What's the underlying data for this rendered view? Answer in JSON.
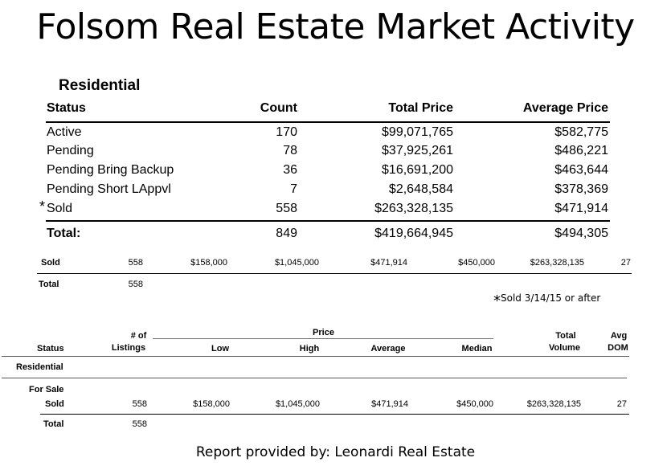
{
  "title": "Folsom Real Estate Market Activity",
  "top_table": {
    "section": "Residential",
    "headers": [
      "Status",
      "Count",
      "Total Price",
      "Average Price"
    ],
    "rows": [
      {
        "status": "Active",
        "count": "170",
        "total": "$99,071,765",
        "average": "$582,775"
      },
      {
        "status": "Pending",
        "count": "78",
        "total": "$37,925,261",
        "average": "$486,221"
      },
      {
        "status": "Pending Bring Backup",
        "count": "36",
        "total": "$16,691,200",
        "average": "$463,644"
      },
      {
        "status": "Pending Short LAppvl",
        "count": "7",
        "total": "$2,648,584",
        "average": "$378,369"
      },
      {
        "status": "Sold",
        "marker": "*",
        "count": "558",
        "total": "$263,328,135",
        "average": "$471,914"
      }
    ],
    "total": {
      "label": "Total:",
      "count": "849",
      "total": "$419,664,945",
      "average": "$494,305"
    }
  },
  "partial_table": {
    "row": [
      "Sold",
      "558",
      "$158,000",
      "$1,045,000",
      "$471,914",
      "$450,000",
      "$263,328,135",
      "27"
    ],
    "total": [
      "Total",
      "558"
    ]
  },
  "note": {
    "marker": "*",
    "text": "Sold 3/14/15 or after"
  },
  "bottom_table": {
    "headers": {
      "status": "Status",
      "listings_1": "# of",
      "listings_2": "Listings",
      "price_group": "Price",
      "low": "Low",
      "high": "High",
      "average": "Average",
      "median": "Median",
      "volume_1": "Total",
      "volume_2": "Volume",
      "dom_1": "Avg",
      "dom_2": "DOM"
    },
    "section": "Residential",
    "subsection": "For Sale",
    "row": [
      "Sold",
      "558",
      "$158,000",
      "$1,045,000",
      "$471,914",
      "$450,000",
      "$263,328,135",
      "27"
    ],
    "total": [
      "Total",
      "558"
    ]
  },
  "footer": "Report provided by: Leonardi Real Estate"
}
